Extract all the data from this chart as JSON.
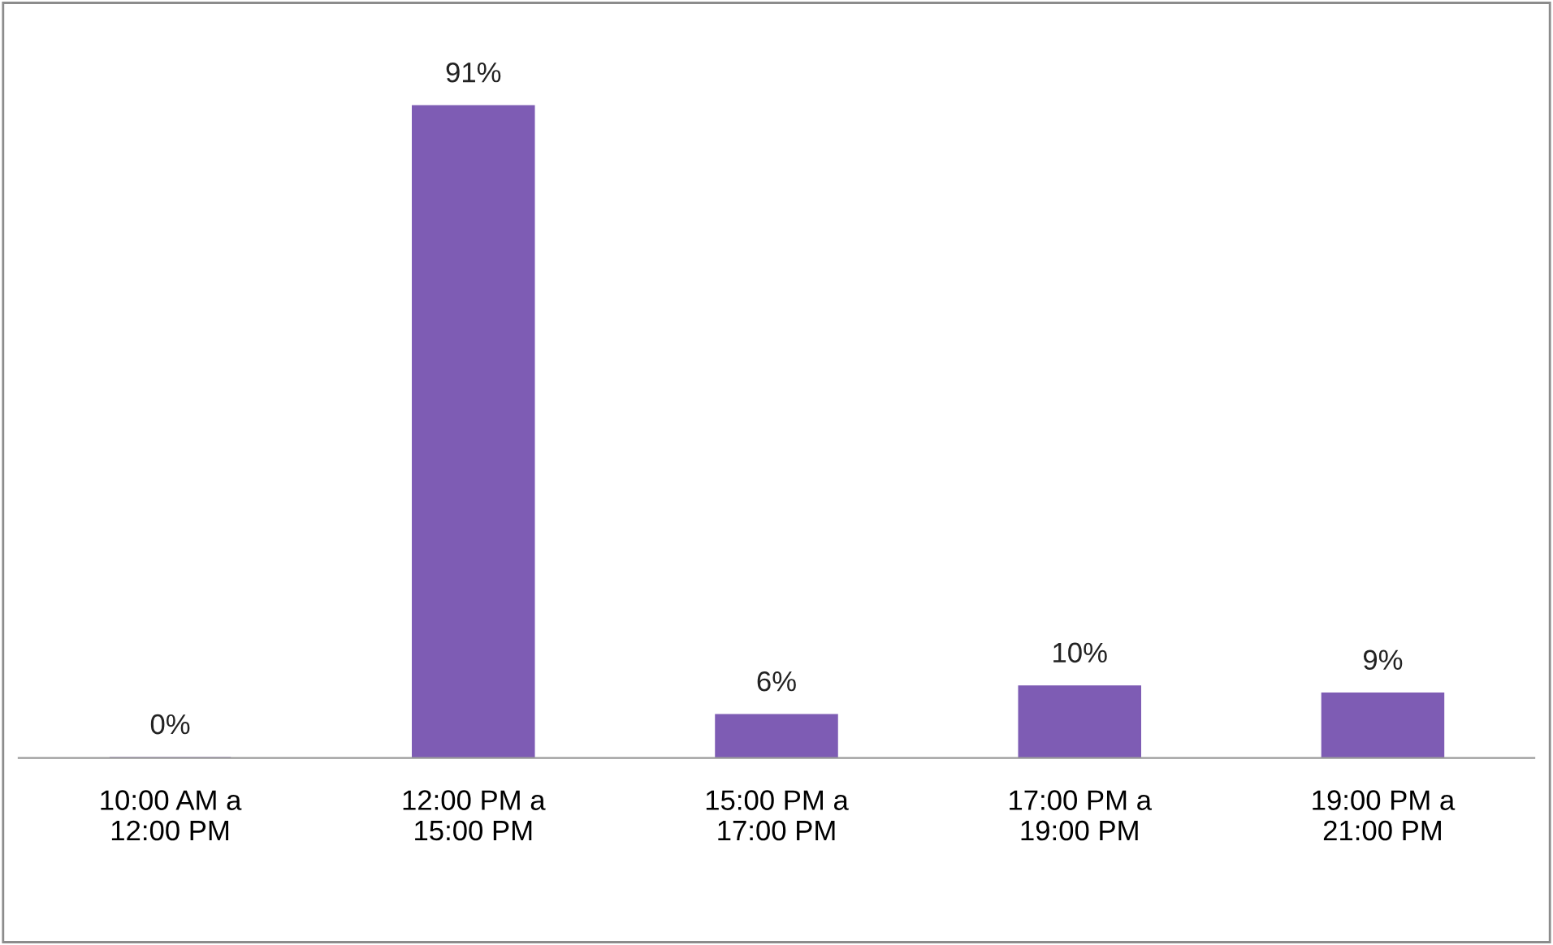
{
  "chart_data": {
    "type": "bar",
    "categories": [
      "10:00 AM a\n12:00 PM",
      "12:00 PM a\n15:00 PM",
      "15:00 PM a\n17:00 PM",
      "17:00 PM a\n19:00 PM",
      "19:00 PM a\n21:00 PM"
    ],
    "values": [
      0,
      91,
      6,
      10,
      9
    ],
    "value_labels": [
      "0%",
      "91%",
      "6%",
      "10%",
      "9%"
    ],
    "color": "#7e5cb4",
    "grid": false,
    "legend": false
  }
}
